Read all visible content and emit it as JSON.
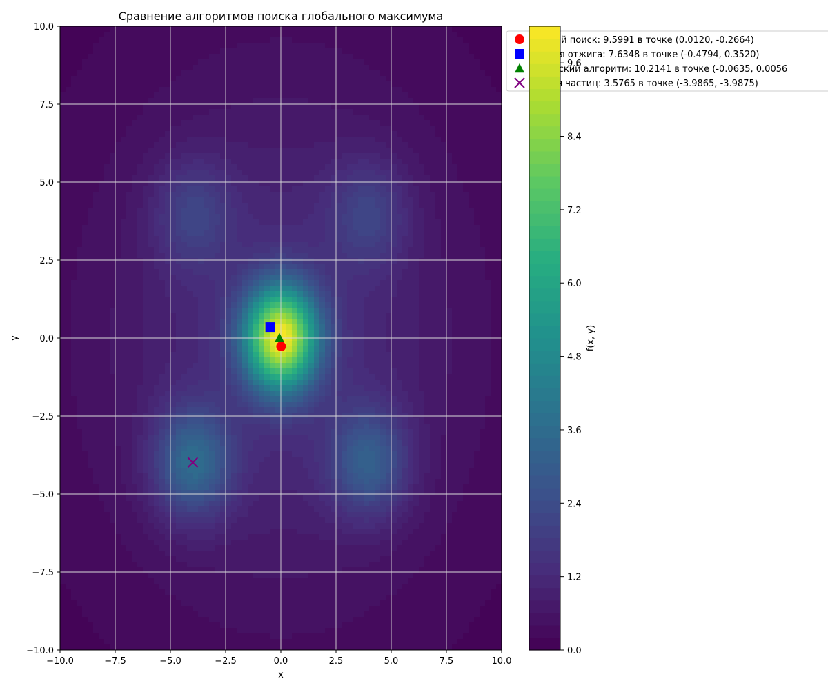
{
  "chart_data": {
    "type": "heatmap",
    "subtype": "filled-contour",
    "title": "Сравнение алгоритмов поиска глобального максимума",
    "xlabel": "x",
    "ylabel": "y",
    "xlim": [
      -10,
      10
    ],
    "ylim": [
      -10,
      10
    ],
    "grid": true,
    "x_ticks": [
      "−10.0",
      "−7.5",
      "−5.0",
      "−2.5",
      "0.0",
      "2.5",
      "5.0",
      "7.5",
      "10.0"
    ],
    "y_ticks": [
      "−10.0",
      "−7.5",
      "−5.0",
      "−2.5",
      "0.0",
      "2.5",
      "5.0",
      "7.5",
      "10.0"
    ],
    "x_tick_values": [
      -10,
      -7.5,
      -5,
      -2.5,
      0,
      2.5,
      5,
      7.5,
      10
    ],
    "y_tick_values": [
      -10,
      -7.5,
      -5,
      -2.5,
      0,
      2.5,
      5,
      7.5,
      10
    ],
    "colormap": "viridis",
    "colorbar": {
      "label": "f(x, y)",
      "range": [
        0.0,
        10.2
      ],
      "ticks": [
        "0.0",
        "1.2",
        "2.4",
        "3.6",
        "4.8",
        "6.0",
        "7.2",
        "8.4",
        "9.6"
      ],
      "tick_values": [
        0.0,
        1.2,
        2.4,
        3.6,
        4.8,
        6.0,
        7.2,
        8.4,
        9.6
      ]
    },
    "surface_features": {
      "global_peak": {
        "x": 0,
        "y": 0,
        "value": 10.2
      },
      "local_peaks": [
        {
          "x": -4,
          "y": 4,
          "value": 2.1
        },
        {
          "x": 4,
          "y": 4,
          "value": 2.1
        },
        {
          "x": -4,
          "y": -4,
          "value": 3.6
        },
        {
          "x": 4,
          "y": -4,
          "value": 3.1
        }
      ],
      "background_value": 0.2
    },
    "legend_position": "upper-right (outside axes, overlapping colorbar)",
    "points": [
      {
        "label": "Случайный поиск: 9.5991 в точке (0.0120, -0.2664)",
        "legend_text": "айный поиск: 9.5991 в точке (0.0120, -0.2664)",
        "x": 0.012,
        "y": -0.2664,
        "marker": "circle",
        "color": "#ff0000"
      },
      {
        "label": "Имитация отжига: 7.6348 в точке (-0.4794, 0.3520)",
        "legend_text": "тация отжига: 7.6348 в точке (-0.4794, 0.3520)",
        "x": -0.4794,
        "y": 0.352,
        "marker": "square",
        "color": "#0000ff"
      },
      {
        "label": "Генетический алгоритм: 10.2141 в точке (-0.0635, 0.0056)",
        "legend_text": "тический алгоритм: 10.2141 в точке (-0.0635, 0.0056",
        "x": -0.0635,
        "y": 0.0056,
        "marker": "triangle",
        "color": "#008000"
      },
      {
        "label": "Метод роя частиц: 3.5765 в точке (-3.9865, -3.9875)",
        "legend_text": "д роя частиц: 3.5765 в точке (-3.9865, -3.9875)",
        "x": -3.9865,
        "y": -3.9875,
        "marker": "x",
        "color": "#800080"
      }
    ]
  }
}
